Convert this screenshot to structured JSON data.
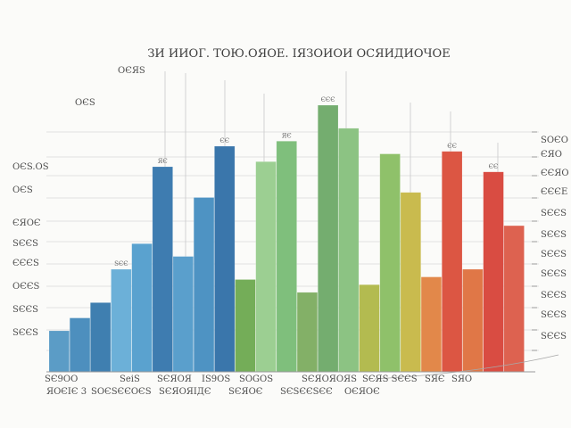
{
  "chart_data": {
    "type": "bar",
    "title": "ЗИ ИИОГ. ТОЮ.ОЯОЕ. ІЯЗОИОИ ОСЯИДИОЧОЕ",
    "bars": [
      {
        "value": 16,
        "color": "#5b9cc6"
      },
      {
        "value": 21,
        "color": "#4d8fbe"
      },
      {
        "value": 27,
        "color": "#3f7fb0"
      },
      {
        "value": 40,
        "color": "#6cb0d8"
      },
      {
        "value": 50,
        "color": "#5aa2cf"
      },
      {
        "value": 80,
        "color": "#3e7cb0"
      },
      {
        "value": 45,
        "color": "#5a9fcc"
      },
      {
        "value": 68,
        "color": "#4e93c3"
      },
      {
        "value": 88,
        "color": "#3a76ab"
      },
      {
        "value": 36,
        "color": "#74ad58"
      },
      {
        "value": 82,
        "color": "#9ccf92"
      },
      {
        "value": 90,
        "color": "#7fbf7c"
      },
      {
        "value": 31,
        "color": "#83b067"
      },
      {
        "value": 104,
        "color": "#74ad6f"
      },
      {
        "value": 95,
        "color": "#8cc383"
      },
      {
        "value": 34,
        "color": "#b3bb50"
      },
      {
        "value": 85,
        "color": "#8fc16a"
      },
      {
        "value": 70,
        "color": "#c9bb4e"
      },
      {
        "value": 37,
        "color": "#e2884a"
      },
      {
        "value": 86,
        "color": "#dc5643"
      },
      {
        "value": 40,
        "color": "#e07747"
      },
      {
        "value": 78,
        "color": "#d94c42"
      },
      {
        "value": 57,
        "color": "#dd6250"
      }
    ],
    "ylim": [
      0,
      120
    ],
    "grid": true,
    "bottom_labels": [
      "SЄ9OO",
      "SeiS",
      "SЄЯOЯ",
      "IS9OS",
      "SOGOS",
      "SЄЯOЯOЯS",
      "SЄЯS SЄЄS",
      "SЯЄ",
      "SЯO"
    ],
    "bottom_labels_row2": [
      "ЯOЄIЄ 3",
      "SOЄSЄЄOЄS",
      "SЄЯOЯIДЄ",
      "SЄЯOЄ",
      "SЄSЄЄSЄЄ",
      "OЄЯOЄ"
    ],
    "left_labels": [
      "OЄЯS",
      "OЄS",
      "OЄS.OS",
      "OЄS",
      "ЄЯOЄ",
      "SЄЄS",
      "ЄЄЄS",
      "OЄЄS",
      "SЄЄS",
      "SЄЄS"
    ],
    "right_labels": [
      "SOЄO",
      "ЄЯO",
      "ЄЄЯO",
      "ЄЄЄE",
      "SЄЄS",
      "SЄЄS",
      "SЄЄS",
      "SЄЄS",
      "SЄЄS",
      "SЄЄS",
      "SЄЄS"
    ],
    "bar_top_labels": [
      "SЄЄ",
      "ЯЄ",
      "ЄЄ",
      "ЯЄ",
      "ЄЄЄ",
      "ЄЄ",
      "ЄЄ"
    ]
  }
}
